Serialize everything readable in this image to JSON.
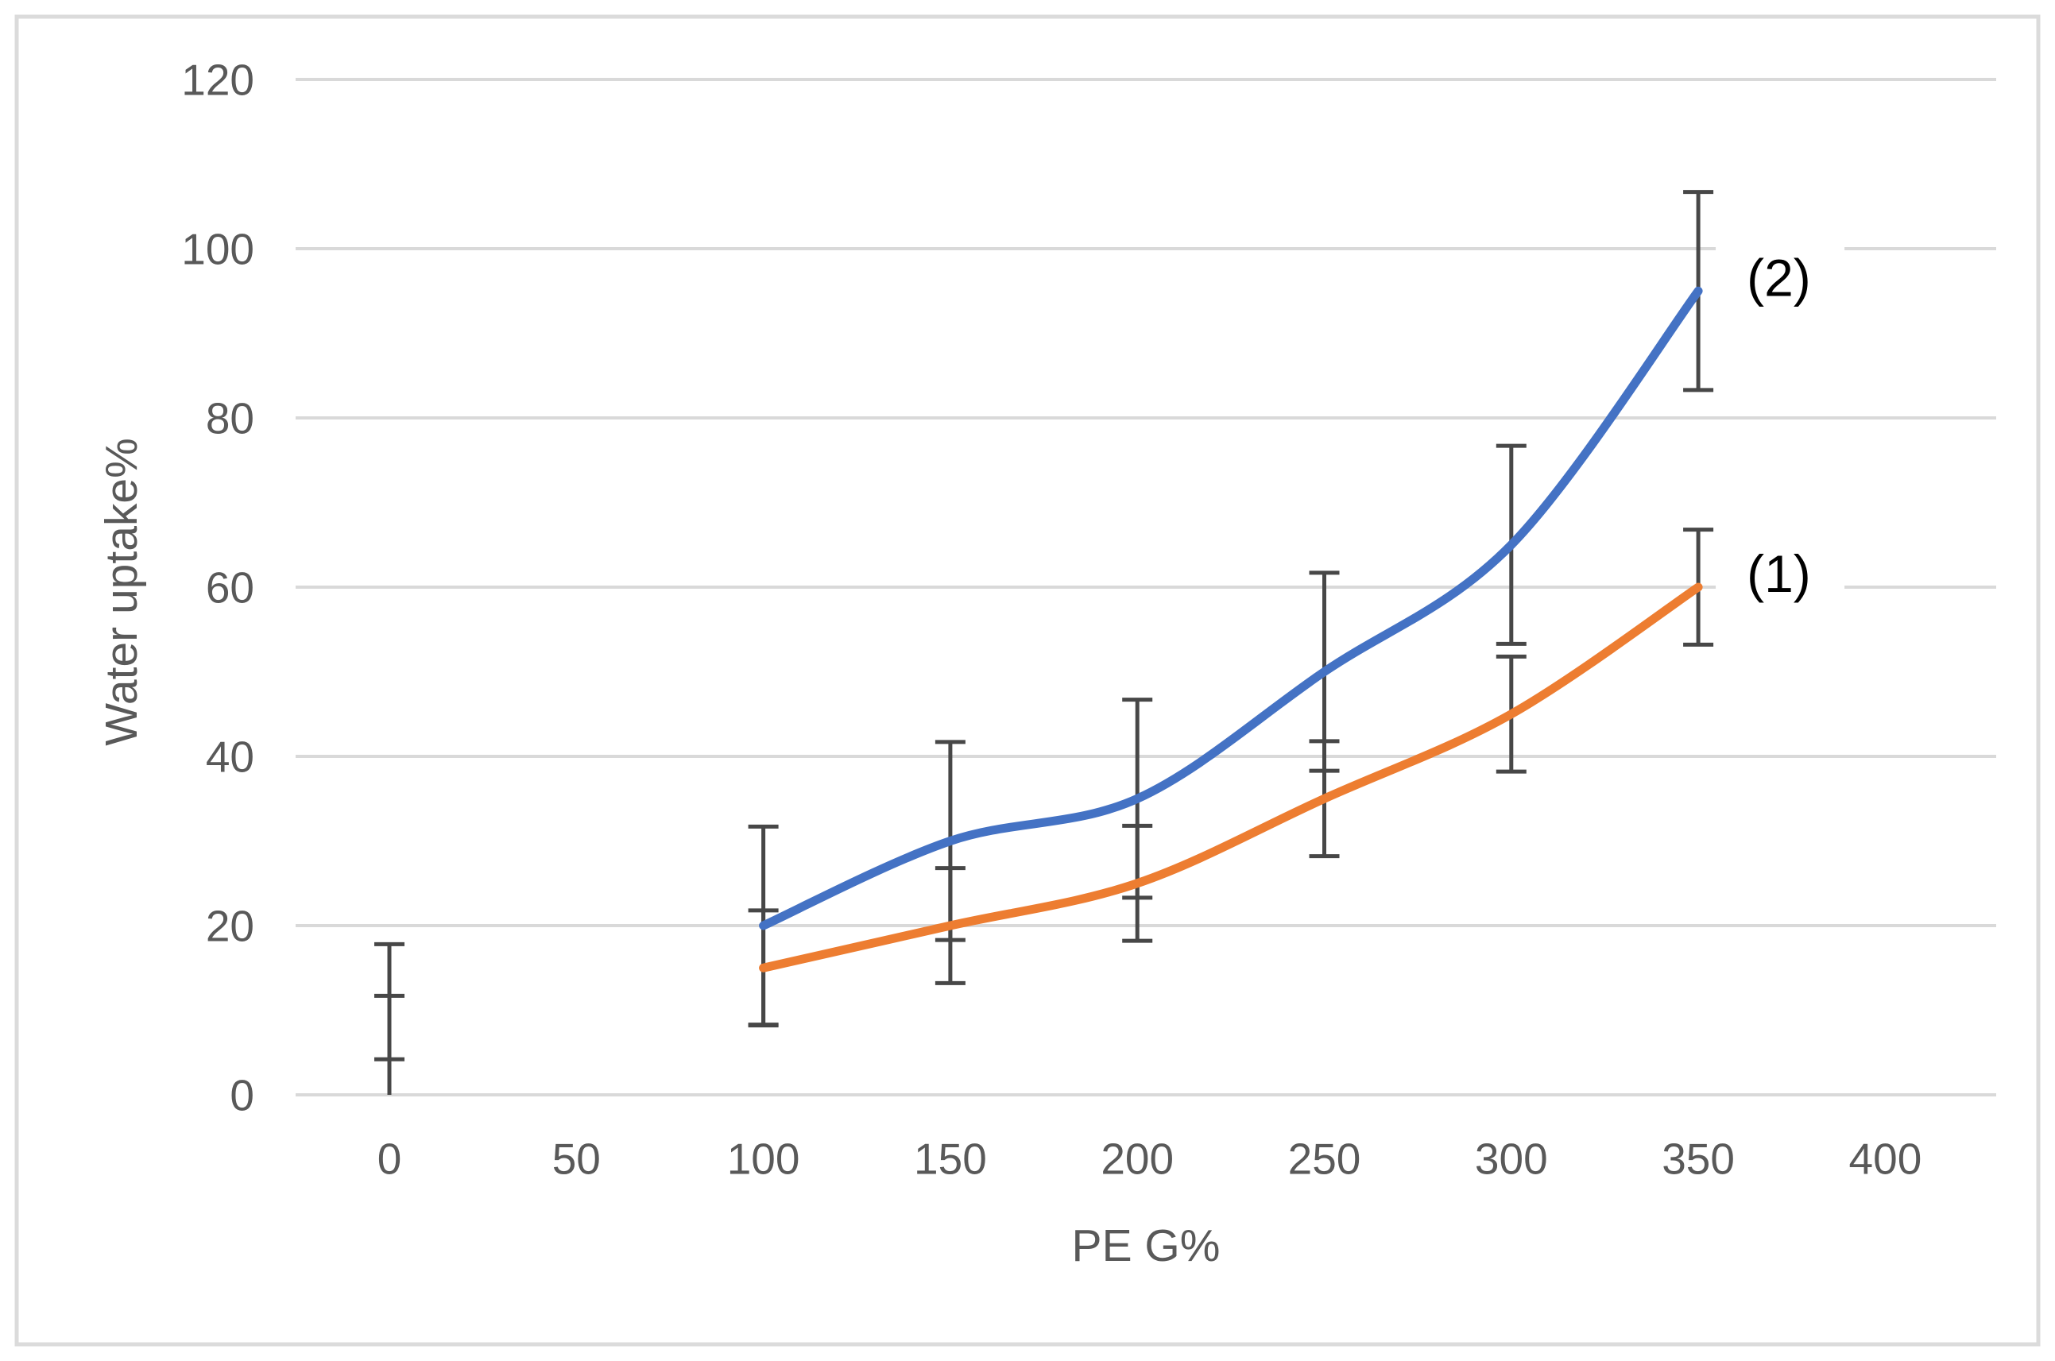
{
  "figure": {
    "background": "#FFFFFF",
    "border_color": "#DBDBDB"
  },
  "chart_data": {
    "type": "line",
    "title": "",
    "xlabel": "PE G%",
    "ylabel": "Water uptake%",
    "x_ticks": [
      "0",
      "50",
      "100",
      "150",
      "200",
      "250",
      "300",
      "350",
      "400"
    ],
    "x_tick_values": [
      0,
      50,
      100,
      150,
      200,
      250,
      300,
      350,
      400
    ],
    "y_ticks": [
      "0",
      "20",
      "40",
      "60",
      "80",
      "100",
      "120"
    ],
    "y_tick_values": [
      0,
      20,
      40,
      60,
      80,
      100,
      120
    ],
    "xlim": [
      -25,
      425
    ],
    "ylim": [
      0,
      120
    ],
    "grid": "horizontal",
    "line_style": "smooth",
    "legend_position": "labels-at-line-ends",
    "styles": {
      "axis_text_color": "#595959",
      "gridline_color": "#D9D9D9",
      "error_bar_color": "#474747",
      "end_label_color": "#000000"
    },
    "series": [
      {
        "name": "(2)",
        "end_label": "(2)",
        "color": "#4472C4",
        "x": [
          100,
          150,
          200,
          250,
          300,
          350
        ],
        "y": [
          20,
          30,
          35,
          50,
          65,
          95
        ],
        "error_plus_minus": 11.7,
        "error_bars": [
          {
            "x": 0,
            "lo": 0,
            "hi": 11.7,
            "cap_lo": false
          },
          {
            "x": 100,
            "lo": 8.3,
            "hi": 31.7
          },
          {
            "x": 150,
            "lo": 18.3,
            "hi": 41.7
          },
          {
            "x": 200,
            "lo": 23.3,
            "hi": 46.7
          },
          {
            "x": 250,
            "lo": 38.3,
            "hi": 61.7
          },
          {
            "x": 300,
            "lo": 53.3,
            "hi": 76.7
          },
          {
            "x": 350,
            "lo": 83.3,
            "hi": 106.7
          }
        ]
      },
      {
        "name": "(1)",
        "end_label": "(1)",
        "color": "#ED7D31",
        "x": [
          100,
          150,
          200,
          250,
          300,
          350
        ],
        "y": [
          15,
          20,
          25,
          35,
          45,
          60
        ],
        "error_plus_minus": 6.8,
        "error_bars": [
          {
            "x": 0,
            "lo": 4.2,
            "hi": 17.8
          },
          {
            "x": 100,
            "lo": 8.2,
            "hi": 21.8
          },
          {
            "x": 150,
            "lo": 13.2,
            "hi": 26.8
          },
          {
            "x": 200,
            "lo": 18.2,
            "hi": 31.8
          },
          {
            "x": 250,
            "lo": 28.2,
            "hi": 41.8
          },
          {
            "x": 300,
            "lo": 38.2,
            "hi": 51.8
          },
          {
            "x": 350,
            "lo": 53.2,
            "hi": 66.8
          }
        ]
      }
    ]
  }
}
